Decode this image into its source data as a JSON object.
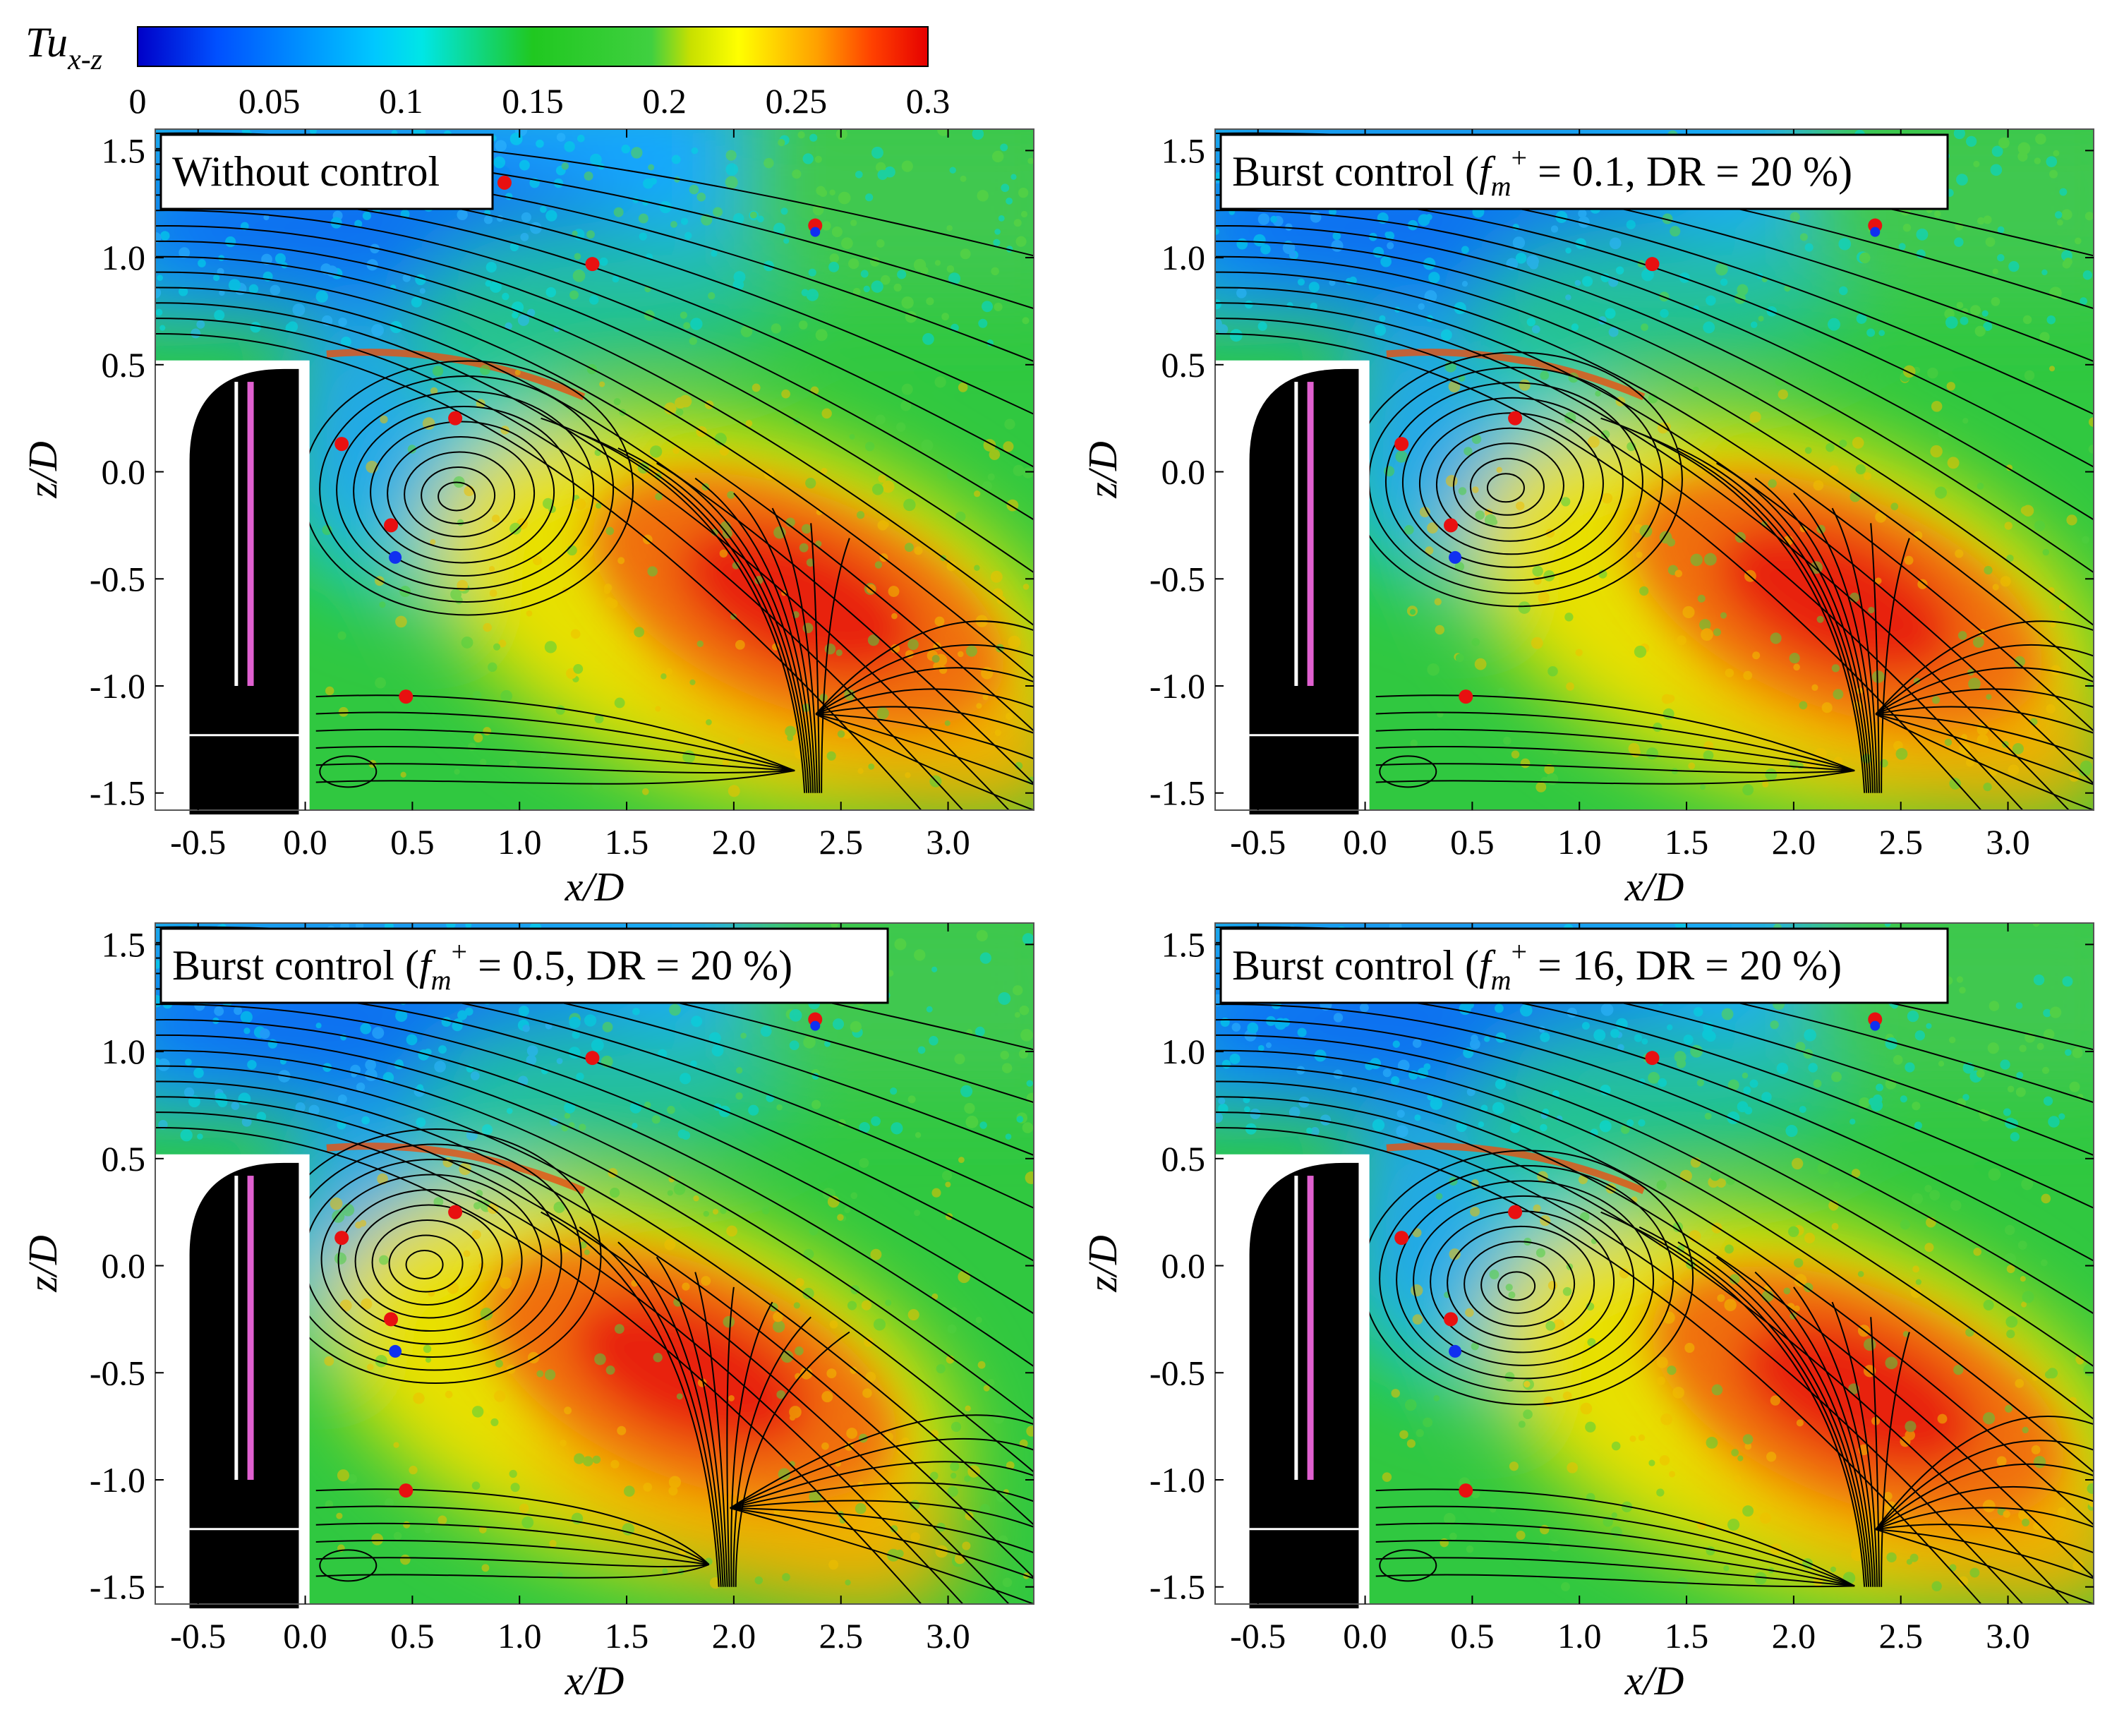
{
  "colorbar": {
    "label_main": "Tu",
    "label_sub": "x-z",
    "ticks": [
      "0",
      "0.05",
      "0.1",
      "0.15",
      "0.2",
      "0.25",
      "0.3"
    ],
    "range": [
      0,
      0.3
    ],
    "colormap": "jet",
    "colors": [
      "#0000c8",
      "#0050ff",
      "#00c8ff",
      "#00e6e6",
      "#20c820",
      "#40d040",
      "#c8e000",
      "#ffff00",
      "#ffa000",
      "#ff4000",
      "#e60000"
    ]
  },
  "chart_data": [
    {
      "type": "heatmap",
      "title": "Without control",
      "xlabel": "x/D",
      "ylabel": "z/D",
      "xlim": [
        -0.7,
        3.4
      ],
      "ylim": [
        -1.58,
        1.6
      ],
      "xticks": [
        "-0.5",
        "0.0",
        "0.5",
        "1.0",
        "1.5",
        "2.0",
        "2.5",
        "3.0"
      ],
      "yticks": [
        "1.5",
        "1.0",
        "0.5",
        "0.0",
        "-0.5",
        "-1.0",
        "-1.5"
      ],
      "vortex_center": [
        0.7,
        -0.12
      ],
      "peak_region": {
        "x": 2.3,
        "z": -0.6,
        "value": 0.3
      },
      "saddle": {
        "x": 2.35,
        "z": -1.0
      }
    },
    {
      "type": "heatmap",
      "title_parts": [
        "Burst control (",
        "f",
        "m",
        "+",
        " = 0.1, DR = 20 %)"
      ],
      "xlabel": "x/D",
      "ylabel": "z/D",
      "xlim": [
        -0.7,
        3.4
      ],
      "ylim": [
        -1.58,
        1.6
      ],
      "xticks": [
        "-0.5",
        "0.0",
        "0.5",
        "1.0",
        "1.5",
        "2.0",
        "2.5",
        "3.0"
      ],
      "yticks": [
        "1.5",
        "1.0",
        "0.5",
        "0.0",
        "-0.5",
        "-1.0",
        "-1.5"
      ],
      "vortex_center": [
        0.65,
        -0.08
      ],
      "peak_region": {
        "x": 2.2,
        "z": -0.6,
        "value": 0.3
      },
      "saddle": {
        "x": 2.35,
        "z": -1.0
      }
    },
    {
      "type": "heatmap",
      "title_parts": [
        "Burst control (",
        "f",
        "m",
        "+",
        " = 0.5, DR = 20 %)"
      ],
      "xlabel": "x/D",
      "ylabel": "z/D",
      "xlim": [
        -0.7,
        3.4
      ],
      "ylim": [
        -1.58,
        1.6
      ],
      "xticks": [
        "-0.5",
        "0.0",
        "0.5",
        "1.0",
        "1.5",
        "2.0",
        "2.5",
        "3.0"
      ],
      "yticks": [
        "1.5",
        "1.0",
        "0.5",
        "0.0",
        "-0.5",
        "-1.0",
        "-1.5"
      ],
      "vortex_center": [
        0.55,
        0.0
      ],
      "peak_region": {
        "x": 1.8,
        "z": -0.5,
        "value": 0.3
      },
      "saddle": {
        "x": 1.95,
        "z": -1.0
      }
    },
    {
      "type": "heatmap",
      "title_parts": [
        "Burst control (",
        "f",
        "m",
        "+",
        " = 16, DR = 20 %)"
      ],
      "xlabel": "x/D",
      "ylabel": "z/D",
      "xlim": [
        -0.7,
        3.4
      ],
      "ylim": [
        -1.58,
        1.6
      ],
      "xticks": [
        "-0.5",
        "0.0",
        "0.5",
        "1.0",
        "1.5",
        "2.0",
        "2.5",
        "3.0"
      ],
      "yticks": [
        "1.5",
        "1.0",
        "0.5",
        "0.0",
        "-0.5",
        "-1.0",
        "-1.5"
      ],
      "vortex_center": [
        0.7,
        -0.1
      ],
      "peak_region": {
        "x": 2.3,
        "z": -0.6,
        "value": 0.28
      },
      "saddle": {
        "x": 2.35,
        "z": -1.1
      }
    }
  ]
}
